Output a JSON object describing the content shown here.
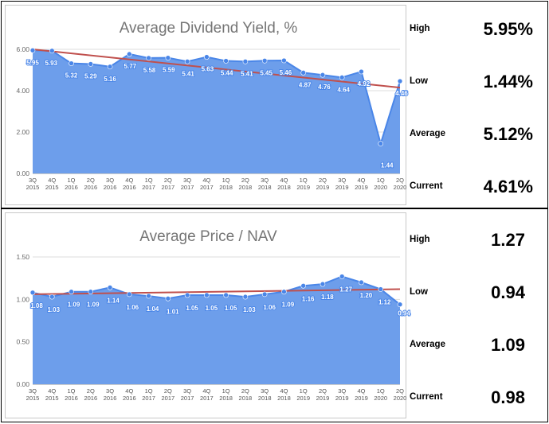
{
  "x_labels": [
    [
      "3Q",
      "2015"
    ],
    [
      "4Q",
      "2015"
    ],
    [
      "1Q",
      "2016"
    ],
    [
      "2Q",
      "2016"
    ],
    [
      "3Q",
      "2016"
    ],
    [
      "4Q",
      "2016"
    ],
    [
      "1Q",
      "2017"
    ],
    [
      "2Q",
      "2017"
    ],
    [
      "3Q",
      "2017"
    ],
    [
      "4Q",
      "2017"
    ],
    [
      "1Q",
      "2018"
    ],
    [
      "2Q",
      "2018"
    ],
    [
      "3Q",
      "2018"
    ],
    [
      "4Q",
      "2018"
    ],
    [
      "1Q",
      "2019"
    ],
    [
      "2Q",
      "2019"
    ],
    [
      "3Q",
      "2019"
    ],
    [
      "4Q",
      "2019"
    ],
    [
      "1Q",
      "2020"
    ],
    [
      "2Q",
      "2020"
    ]
  ],
  "chart_data": [
    {
      "type": "area",
      "title": "Average Dividend Yield, %",
      "xlabel": "",
      "ylabel": "",
      "categories": [
        "3Q 2015",
        "4Q 2015",
        "1Q 2016",
        "2Q 2016",
        "3Q 2016",
        "4Q 2016",
        "1Q 2017",
        "2Q 2017",
        "3Q 2017",
        "4Q 2017",
        "1Q 2018",
        "2Q 2018",
        "3Q 2018",
        "4Q 2018",
        "1Q 2019",
        "2Q 2019",
        "3Q 2019",
        "4Q 2019",
        "1Q 2020",
        "2Q 2020"
      ],
      "values": [
        5.95,
        5.93,
        5.32,
        5.29,
        5.16,
        5.77,
        5.58,
        5.59,
        5.41,
        5.63,
        5.44,
        5.41,
        5.45,
        5.46,
        4.87,
        4.76,
        4.64,
        4.92,
        1.44,
        4.46
      ],
      "data_labels": [
        "5.95",
        "5.93",
        "5.32",
        "5.29",
        "5.16",
        "5.77",
        "5.58",
        "5.59",
        "5.41",
        "5.63",
        "5.44",
        "5.41",
        "5.45",
        "5.46",
        "4.87",
        "4.76",
        "4.64",
        "4.92",
        "1.44",
        "4.46"
      ],
      "ylim": [
        0,
        6
      ],
      "yticks": [
        0,
        2,
        4,
        6
      ],
      "ytick_labels": [
        "0.00",
        "2.00",
        "4.00",
        "6.00"
      ],
      "trendline": {
        "start": 6.0,
        "end": 4.15
      },
      "grid": true,
      "fill_color": "#6d9eeb",
      "line_color": "#4a86e8",
      "trend_color": "#c0504d"
    },
    {
      "type": "area",
      "title": "Average Price / NAV",
      "xlabel": "",
      "ylabel": "",
      "categories": [
        "3Q 2015",
        "4Q 2015",
        "1Q 2016",
        "2Q 2016",
        "3Q 2016",
        "4Q 2016",
        "1Q 2017",
        "2Q 2017",
        "3Q 2017",
        "4Q 2017",
        "1Q 2018",
        "2Q 2018",
        "3Q 2018",
        "4Q 2018",
        "1Q 2019",
        "2Q 2019",
        "3Q 2019",
        "4Q 2019",
        "1Q 2020",
        "2Q 2020"
      ],
      "values": [
        1.08,
        1.03,
        1.09,
        1.09,
        1.14,
        1.06,
        1.04,
        1.01,
        1.05,
        1.05,
        1.05,
        1.03,
        1.06,
        1.09,
        1.16,
        1.18,
        1.27,
        1.2,
        1.12,
        0.94
      ],
      "data_labels": [
        "1.08",
        "1.03",
        "1.09",
        "1.09",
        "1.14",
        "1.06",
        "1.04",
        "1.01",
        "1.05",
        "1.05",
        "1.05",
        "1.03",
        "1.06",
        "1.09",
        "1.16",
        "1.18",
        "1.27",
        "1.20",
        "1.12",
        "0.94"
      ],
      "ylim": [
        0,
        1.5
      ],
      "yticks": [
        0,
        0.5,
        1.0,
        1.5
      ],
      "ytick_labels": [
        "0.00",
        "0.50",
        "1.00",
        "1.50"
      ],
      "trendline": {
        "start": 1.06,
        "end": 1.12
      },
      "grid": true,
      "fill_color": "#6d9eeb",
      "line_color": "#4a86e8",
      "trend_color": "#c0504d"
    }
  ],
  "stats": [
    {
      "items": [
        {
          "label": "High",
          "value": "5.95%"
        },
        {
          "label": "Low",
          "value": "1.44%"
        },
        {
          "label": "Average",
          "value": "5.12%"
        },
        {
          "label": "Current",
          "value": "4.61%"
        }
      ]
    },
    {
      "items": [
        {
          "label": "High",
          "value": "1.27"
        },
        {
          "label": "Low",
          "value": "0.94"
        },
        {
          "label": "Average",
          "value": "1.09"
        },
        {
          "label": "Current",
          "value": "0.98"
        }
      ]
    }
  ]
}
